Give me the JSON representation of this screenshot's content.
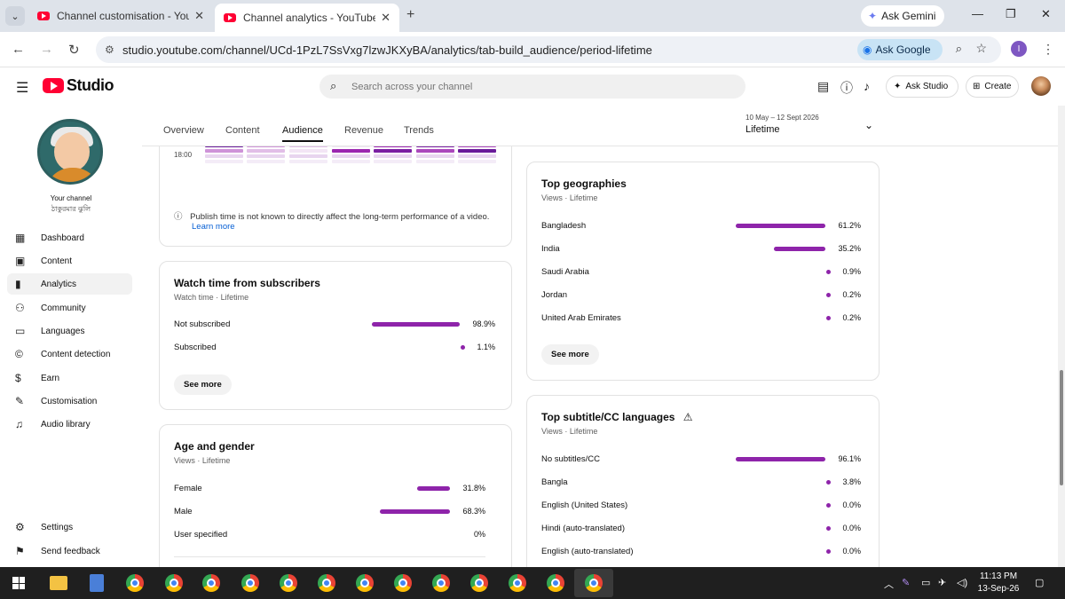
{
  "browser": {
    "tabs": [
      {
        "title": "Channel customisation - YouTub"
      },
      {
        "title": "Channel analytics - YouTube Stu"
      }
    ],
    "gemini_label": "Ask Gemini",
    "url": "studio.youtube.com/channel/UCd-1PzL7SsVxg7lzwJKXyBA/analytics/tab-build_audience/period-lifetime",
    "ask_google_label": "Ask Google",
    "profile_initial": "I"
  },
  "header": {
    "brand": "Studio",
    "search_placeholder": "Search across your channel",
    "ask_studio_label": "Ask Studio",
    "create_label": "Create"
  },
  "sidebar": {
    "your_channel": "Your channel",
    "channel_name": "ঠাকুরমার ঝুলি",
    "nav": [
      {
        "label": "Dashboard",
        "icon": "dashboard-icon"
      },
      {
        "label": "Content",
        "icon": "content-icon"
      },
      {
        "label": "Analytics",
        "icon": "analytics-icon"
      },
      {
        "label": "Community",
        "icon": "community-icon"
      },
      {
        "label": "Languages",
        "icon": "languages-icon"
      },
      {
        "label": "Content detection",
        "icon": "copyright-icon"
      },
      {
        "label": "Earn",
        "icon": "earn-icon"
      },
      {
        "label": "Customisation",
        "icon": "customisation-icon"
      },
      {
        "label": "Audio library",
        "icon": "audio-library-icon"
      }
    ],
    "settings": "Settings",
    "feedback": "Send feedback"
  },
  "main": {
    "tabs": [
      "Overview",
      "Content",
      "Audience",
      "Revenue",
      "Trends"
    ],
    "active_tab": "Audience",
    "period_range": "10 May – 12 Sept 2026",
    "period_value": "Lifetime"
  },
  "publish_card": {
    "time_label": "18:00",
    "info_text": "Publish time is not known to directly affect the long-term performance of a video.",
    "learn_more": "Learn more"
  },
  "watch_time": {
    "title": "Watch time from subscribers",
    "subtitle": "Watch time · Lifetime",
    "rows": [
      {
        "label": "Not subscribed",
        "value": "98.9%",
        "pct": 98.9
      },
      {
        "label": "Subscribed",
        "value": "1.1%",
        "pct": 1.1
      }
    ],
    "see_more": "See more"
  },
  "age_gender": {
    "title": "Age and gender",
    "subtitle": "Views · Lifetime",
    "rows": [
      {
        "label": "Female",
        "value": "31.8%",
        "pct": 31.8
      },
      {
        "label": "Male",
        "value": "68.3%",
        "pct": 68.3
      },
      {
        "label": "User specified",
        "value": "0%",
        "pct": 0
      }
    ]
  },
  "geographies": {
    "title": "Top geographies",
    "subtitle": "Views · Lifetime",
    "rows": [
      {
        "label": "Bangladesh",
        "value": "61.2%",
        "pct": 61.2
      },
      {
        "label": "India",
        "value": "35.2%",
        "pct": 35.2
      },
      {
        "label": "Saudi Arabia",
        "value": "0.9%",
        "pct": 0.9
      },
      {
        "label": "Jordan",
        "value": "0.2%",
        "pct": 0.2
      },
      {
        "label": "United Arab Emirates",
        "value": "0.2%",
        "pct": 0.2
      }
    ],
    "see_more": "See more"
  },
  "subtitles": {
    "title": "Top subtitle/CC languages",
    "subtitle": "Views · Lifetime",
    "rows": [
      {
        "label": "No subtitles/CC",
        "value": "96.1%",
        "pct": 96.1
      },
      {
        "label": "Bangla",
        "value": "3.8%",
        "pct": 3.8
      },
      {
        "label": "English (United States)",
        "value": "0.0%",
        "pct": 0
      },
      {
        "label": "Hindi (auto-translated)",
        "value": "0.0%",
        "pct": 0
      },
      {
        "label": "English (auto-translated)",
        "value": "0.0%",
        "pct": 0
      }
    ]
  },
  "taskbar": {
    "time": "11:13 PM",
    "date": "13-Sep-26"
  },
  "colors": {
    "accent": "#8e24aa",
    "youtube_red": "#ff0033"
  }
}
